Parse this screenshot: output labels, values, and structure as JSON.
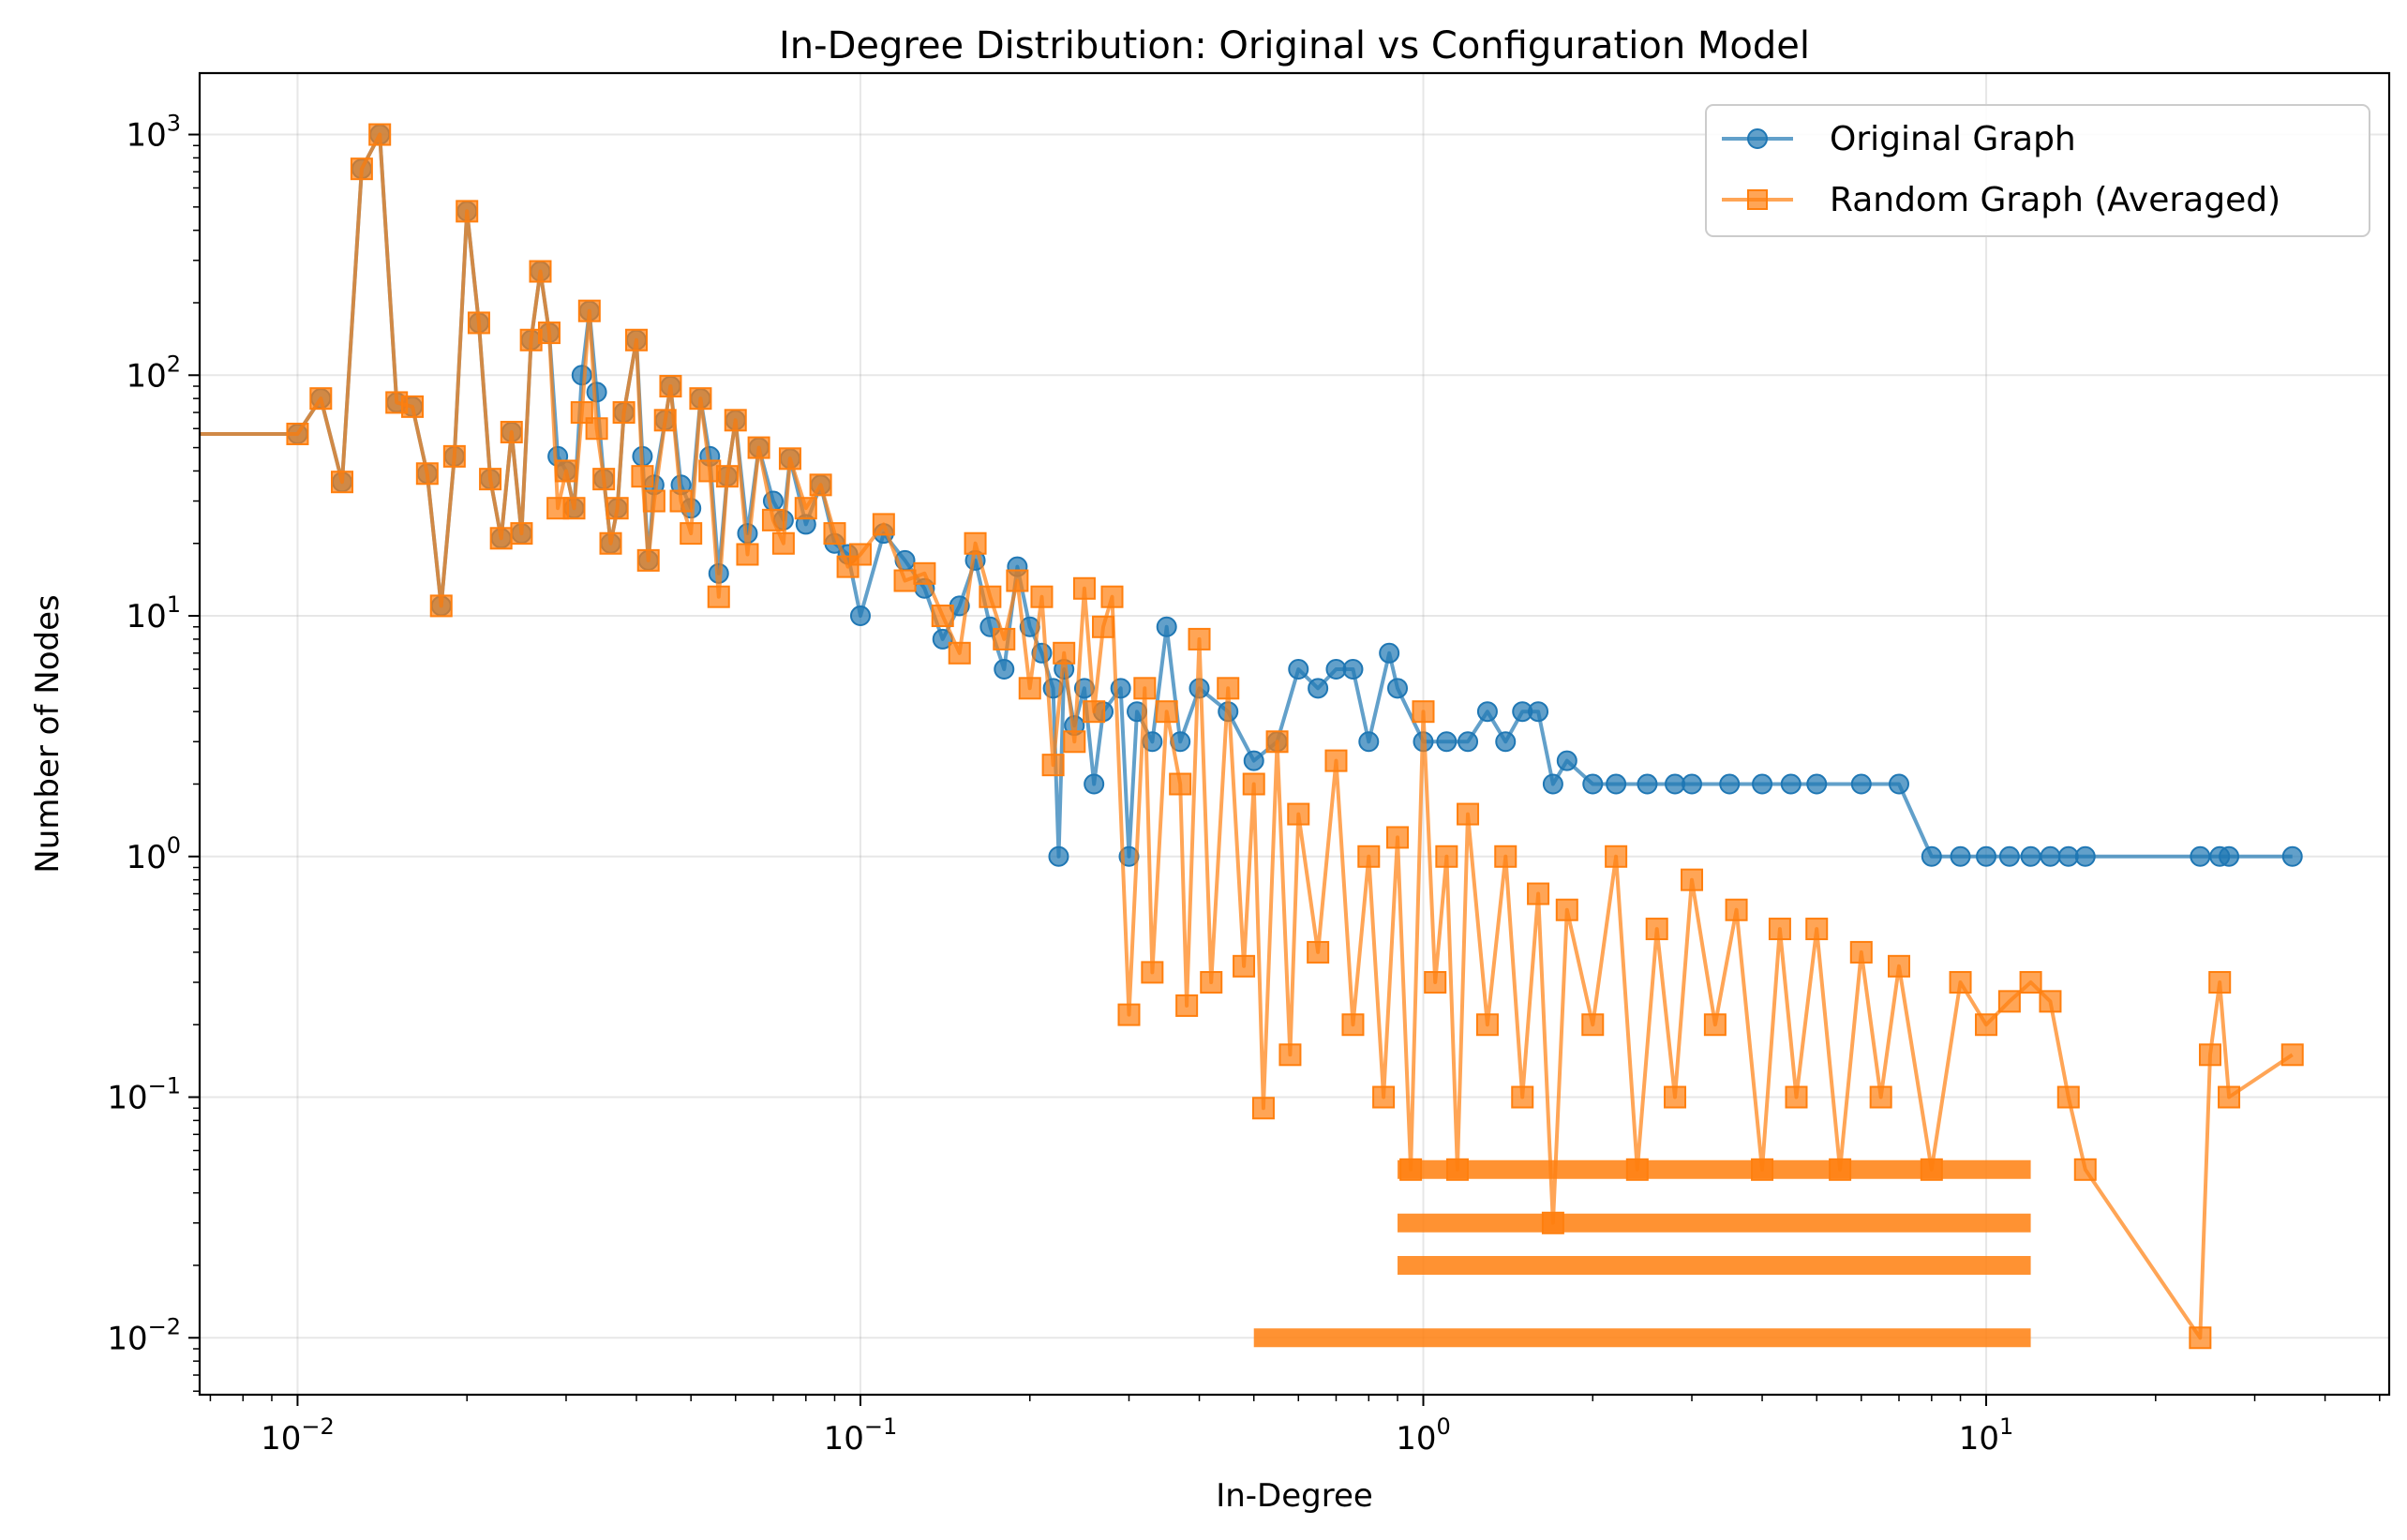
{
  "chart_data": {
    "type": "line",
    "title": "In-Degree Distribution: Original vs Configuration Model",
    "xlabel": "In-Degree",
    "ylabel": "Number of Nodes",
    "x_scale": "log",
    "y_scale": "log",
    "xlim": [
      0.0067,
      52
    ],
    "ylim": [
      0.0058,
      1800
    ],
    "grid": true,
    "legend_position": "top-right",
    "x_ticks": [
      {
        "value": 0.01,
        "base": "10",
        "exp": "−2"
      },
      {
        "value": 0.1,
        "base": "10",
        "exp": "−1"
      },
      {
        "value": 1,
        "base": "10",
        "exp": "0"
      },
      {
        "value": 10,
        "base": "10",
        "exp": "1"
      }
    ],
    "y_ticks": [
      {
        "value": 0.01,
        "base": "10",
        "exp": "−2"
      },
      {
        "value": 0.1,
        "base": "10",
        "exp": "−1"
      },
      {
        "value": 1,
        "base": "10",
        "exp": "0"
      },
      {
        "value": 10,
        "base": "10",
        "exp": "1"
      },
      {
        "value": 100,
        "base": "10",
        "exp": "2"
      },
      {
        "value": 1000,
        "base": "10",
        "exp": "3"
      }
    ],
    "series": [
      {
        "name": "Original Graph",
        "color": "#1f77b4",
        "marker": "circle",
        "points": [
          [
            0.0067,
            57
          ],
          [
            0.01,
            57
          ],
          [
            0.011,
            80
          ],
          [
            0.012,
            36
          ],
          [
            0.013,
            720
          ],
          [
            0.014,
            1000
          ],
          [
            0.015,
            77
          ],
          [
            0.016,
            74
          ],
          [
            0.017,
            39
          ],
          [
            0.018,
            11
          ],
          [
            0.019,
            46
          ],
          [
            0.02,
            480
          ],
          [
            0.021,
            165
          ],
          [
            0.022,
            37
          ],
          [
            0.023,
            21
          ],
          [
            0.024,
            58
          ],
          [
            0.025,
            22
          ],
          [
            0.026,
            140
          ],
          [
            0.027,
            270
          ],
          [
            0.028,
            150
          ],
          [
            0.029,
            46
          ],
          [
            0.03,
            40
          ],
          [
            0.031,
            28
          ],
          [
            0.032,
            100
          ],
          [
            0.033,
            185
          ],
          [
            0.034,
            85
          ],
          [
            0.035,
            37
          ],
          [
            0.036,
            20
          ],
          [
            0.037,
            28
          ],
          [
            0.038,
            70
          ],
          [
            0.04,
            140
          ],
          [
            0.041,
            46
          ],
          [
            0.042,
            17
          ],
          [
            0.043,
            35
          ],
          [
            0.045,
            65
          ],
          [
            0.046,
            90
          ],
          [
            0.048,
            35
          ],
          [
            0.05,
            28
          ],
          [
            0.052,
            80
          ],
          [
            0.054,
            46
          ],
          [
            0.056,
            15
          ],
          [
            0.058,
            38
          ],
          [
            0.06,
            65
          ],
          [
            0.063,
            22
          ],
          [
            0.066,
            50
          ],
          [
            0.07,
            30
          ],
          [
            0.073,
            25
          ],
          [
            0.075,
            45
          ],
          [
            0.08,
            24
          ],
          [
            0.085,
            35
          ],
          [
            0.09,
            20
          ],
          [
            0.095,
            18
          ],
          [
            0.1,
            10
          ],
          [
            0.11,
            22
          ],
          [
            0.12,
            17
          ],
          [
            0.13,
            13
          ],
          [
            0.14,
            8
          ],
          [
            0.15,
            11
          ],
          [
            0.16,
            17
          ],
          [
            0.17,
            9
          ],
          [
            0.18,
            6
          ],
          [
            0.19,
            16
          ],
          [
            0.2,
            9
          ],
          [
            0.21,
            7
          ],
          [
            0.22,
            5
          ],
          [
            0.225,
            1
          ],
          [
            0.23,
            6
          ],
          [
            0.24,
            3.5
          ],
          [
            0.25,
            5
          ],
          [
            0.26,
            2
          ],
          [
            0.27,
            4
          ],
          [
            0.29,
            5
          ],
          [
            0.3,
            1
          ],
          [
            0.31,
            4
          ],
          [
            0.33,
            3
          ],
          [
            0.35,
            9
          ],
          [
            0.37,
            3
          ],
          [
            0.4,
            5
          ],
          [
            0.45,
            4
          ],
          [
            0.5,
            2.5
          ],
          [
            0.55,
            3
          ],
          [
            0.6,
            6
          ],
          [
            0.65,
            5
          ],
          [
            0.7,
            6
          ],
          [
            0.75,
            6
          ],
          [
            0.8,
            3
          ],
          [
            0.87,
            7
          ],
          [
            0.9,
            5
          ],
          [
            1,
            3
          ],
          [
            1.1,
            3
          ],
          [
            1.2,
            3
          ],
          [
            1.3,
            4
          ],
          [
            1.4,
            3
          ],
          [
            1.5,
            4
          ],
          [
            1.6,
            4
          ],
          [
            1.7,
            2
          ],
          [
            1.8,
            2.5
          ],
          [
            2,
            2
          ],
          [
            2.2,
            2
          ],
          [
            2.5,
            2
          ],
          [
            2.8,
            2
          ],
          [
            3,
            2
          ],
          [
            3.5,
            2
          ],
          [
            4,
            2
          ],
          [
            4.5,
            2
          ],
          [
            5,
            2
          ],
          [
            6,
            2
          ],
          [
            7,
            2
          ],
          [
            8,
            1
          ],
          [
            9,
            1
          ],
          [
            10,
            1
          ],
          [
            11,
            1
          ],
          [
            12,
            1
          ],
          [
            13,
            1
          ],
          [
            14,
            1
          ],
          [
            15,
            1
          ],
          [
            24,
            1
          ],
          [
            26,
            1
          ],
          [
            27,
            1
          ],
          [
            35,
            1
          ]
        ]
      },
      {
        "name": "Random Graph (Averaged)",
        "color": "#ff7f0e",
        "marker": "square",
        "points": [
          [
            0.0067,
            57
          ],
          [
            0.01,
            57
          ],
          [
            0.011,
            80
          ],
          [
            0.012,
            36
          ],
          [
            0.013,
            720
          ],
          [
            0.014,
            1000
          ],
          [
            0.015,
            77
          ],
          [
            0.016,
            74
          ],
          [
            0.017,
            39
          ],
          [
            0.018,
            11
          ],
          [
            0.019,
            46
          ],
          [
            0.02,
            480
          ],
          [
            0.021,
            165
          ],
          [
            0.022,
            37
          ],
          [
            0.023,
            21
          ],
          [
            0.024,
            58
          ],
          [
            0.025,
            22
          ],
          [
            0.026,
            140
          ],
          [
            0.027,
            270
          ],
          [
            0.028,
            150
          ],
          [
            0.029,
            28
          ],
          [
            0.03,
            40
          ],
          [
            0.031,
            28
          ],
          [
            0.032,
            70
          ],
          [
            0.033,
            185
          ],
          [
            0.034,
            60
          ],
          [
            0.035,
            37
          ],
          [
            0.036,
            20
          ],
          [
            0.037,
            28
          ],
          [
            0.038,
            70
          ],
          [
            0.04,
            140
          ],
          [
            0.041,
            38
          ],
          [
            0.042,
            17
          ],
          [
            0.043,
            30
          ],
          [
            0.045,
            65
          ],
          [
            0.046,
            90
          ],
          [
            0.048,
            30
          ],
          [
            0.05,
            22
          ],
          [
            0.052,
            80
          ],
          [
            0.054,
            40
          ],
          [
            0.056,
            12
          ],
          [
            0.058,
            38
          ],
          [
            0.06,
            65
          ],
          [
            0.063,
            18
          ],
          [
            0.066,
            50
          ],
          [
            0.07,
            25
          ],
          [
            0.073,
            20
          ],
          [
            0.075,
            45
          ],
          [
            0.08,
            28
          ],
          [
            0.085,
            35
          ],
          [
            0.09,
            22
          ],
          [
            0.095,
            16
          ],
          [
            0.1,
            18
          ],
          [
            0.11,
            24
          ],
          [
            0.12,
            14
          ],
          [
            0.13,
            15
          ],
          [
            0.14,
            10
          ],
          [
            0.15,
            7
          ],
          [
            0.16,
            20
          ],
          [
            0.17,
            12
          ],
          [
            0.18,
            8
          ],
          [
            0.19,
            14
          ],
          [
            0.2,
            5
          ],
          [
            0.21,
            12
          ],
          [
            0.22,
            2.4
          ],
          [
            0.23,
            7
          ],
          [
            0.24,
            3
          ],
          [
            0.25,
            13
          ],
          [
            0.26,
            4
          ],
          [
            0.27,
            9
          ],
          [
            0.28,
            12
          ],
          [
            0.3,
            0.22
          ],
          [
            0.32,
            5
          ],
          [
            0.33,
            0.33
          ],
          [
            0.35,
            4
          ],
          [
            0.37,
            2
          ],
          [
            0.38,
            0.24
          ],
          [
            0.4,
            8
          ],
          [
            0.42,
            0.3
          ],
          [
            0.45,
            5
          ],
          [
            0.48,
            0.35
          ],
          [
            0.5,
            2
          ],
          [
            0.52,
            0.09
          ],
          [
            0.55,
            3
          ],
          [
            0.58,
            0.15
          ],
          [
            0.6,
            1.5
          ],
          [
            0.65,
            0.4
          ],
          [
            0.7,
            2.5
          ],
          [
            0.75,
            0.2
          ],
          [
            0.8,
            1
          ],
          [
            0.85,
            0.1
          ],
          [
            0.9,
            1.2
          ],
          [
            0.95,
            0.05
          ],
          [
            1,
            4
          ],
          [
            1.05,
            0.3
          ],
          [
            1.1,
            1
          ],
          [
            1.15,
            0.05
          ],
          [
            1.2,
            1.5
          ],
          [
            1.3,
            0.2
          ],
          [
            1.4,
            1
          ],
          [
            1.5,
            0.1
          ],
          [
            1.6,
            0.7
          ],
          [
            1.7,
            0.03
          ],
          [
            1.8,
            0.6
          ],
          [
            2,
            0.2
          ],
          [
            2.2,
            1
          ],
          [
            2.4,
            0.05
          ],
          [
            2.6,
            0.5
          ],
          [
            2.8,
            0.1
          ],
          [
            3,
            0.8
          ],
          [
            3.3,
            0.2
          ],
          [
            3.6,
            0.6
          ],
          [
            4,
            0.05
          ],
          [
            4.3,
            0.5
          ],
          [
            4.6,
            0.1
          ],
          [
            5,
            0.5
          ],
          [
            5.5,
            0.05
          ],
          [
            6,
            0.4
          ],
          [
            6.5,
            0.1
          ],
          [
            7,
            0.35
          ],
          [
            8,
            0.05
          ],
          [
            9,
            0.3
          ],
          [
            10,
            0.2
          ],
          [
            11,
            0.25
          ],
          [
            12,
            0.3
          ],
          [
            13,
            0.25
          ],
          [
            14,
            0.1
          ],
          [
            15,
            0.05
          ],
          [
            24,
            0.01
          ],
          [
            25,
            0.15
          ],
          [
            26,
            0.3
          ],
          [
            27,
            0.1
          ],
          [
            35,
            0.15
          ]
        ]
      }
    ],
    "floor_bands": [
      {
        "y": 0.01,
        "x_from": 0.5,
        "x_to": 12
      },
      {
        "y": 0.02,
        "x_from": 0.9,
        "x_to": 12
      },
      {
        "y": 0.03,
        "x_from": 0.9,
        "x_to": 12
      },
      {
        "y": 0.05,
        "x_from": 0.9,
        "x_to": 12
      }
    ]
  }
}
